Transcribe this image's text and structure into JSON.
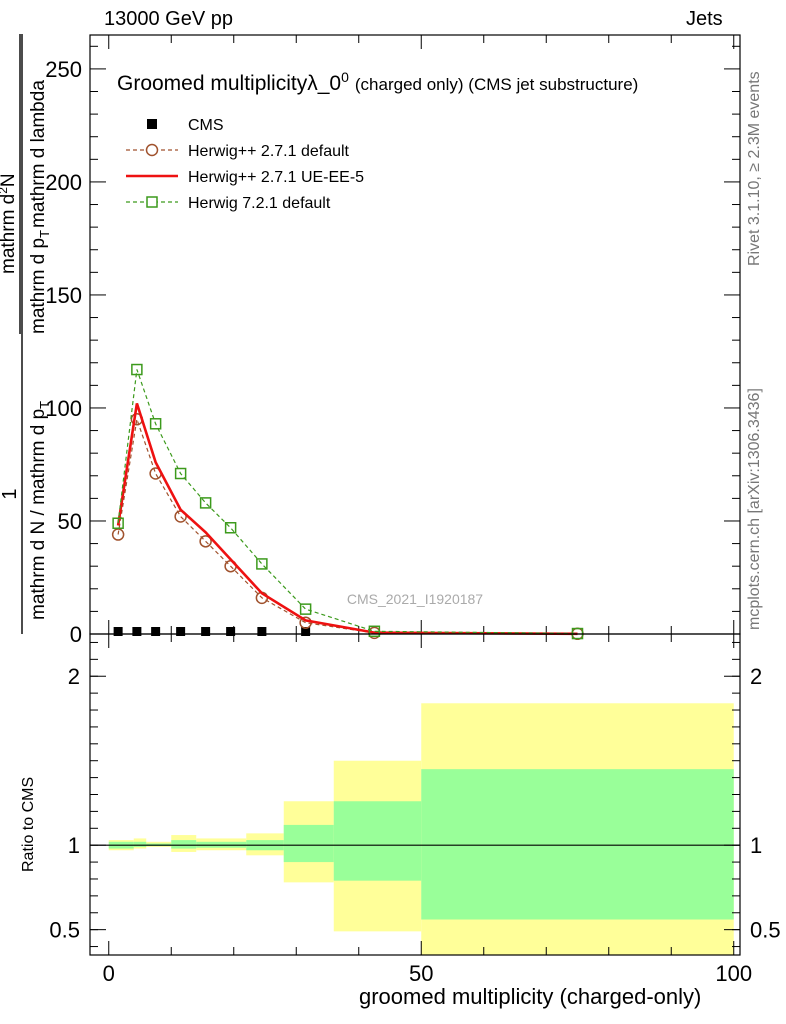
{
  "header": {
    "left": "13000 GeV pp",
    "right": "Jets"
  },
  "side_labels": {
    "rivet": "Rivet 3.1.10, ≥ 2.3M events",
    "mcplots": "mcplots.cern.ch [arXiv:1306.3436]"
  },
  "watermark": "CMS_2021_I1920187",
  "colors": {
    "cms": "#000000",
    "herwigpp_default": "#a0522d",
    "herwigpp_ueee5": "#ee1111",
    "herwig7": "#3c9a1c",
    "band_outer": "#ffff99",
    "band_inner": "#99ff99"
  },
  "chart_data": [
    {
      "type": "line",
      "title": "Groomed multiplicityλ_0",
      "title_superscript": "0",
      "title_suffix": "(charged only) (CMS jet substructure)",
      "ylabel_parts": {
        "numerator": "1",
        "denominator": "mathrm d N / mathrm d p",
        "denominator_sub": "T",
        "right_numerator": "mathrm d",
        "right_numerator_sup": "2",
        "right_numerator_tail": "N",
        "right_denominator": "mathrm d p",
        "right_denominator_sub": "T",
        "right_denominator_tail": "mathrm d lambda"
      },
      "xlim": [
        -3,
        101
      ],
      "ylim": [
        0,
        265
      ],
      "yticks": [
        0,
        50,
        100,
        150,
        200,
        250
      ],
      "legend_position": "top-left",
      "series": [
        {
          "name": "CMS",
          "style": "square-markers",
          "x": [
            1.5,
            4.5,
            7.5,
            11.5,
            15.5,
            19.5,
            24.5,
            31.5
          ],
          "y": [
            0.4,
            0.4,
            0.4,
            0.4,
            0.4,
            0.4,
            0.4,
            0.4
          ]
        },
        {
          "name": "Herwig++ 2.7.1 default",
          "style": "dashed-circles",
          "x": [
            1.5,
            4.5,
            7.5,
            11.5,
            15.5,
            19.5,
            24.5,
            31.5,
            42.5,
            75
          ],
          "y": [
            44,
            95,
            71,
            52,
            41,
            30,
            16,
            5,
            0.5,
            0.1
          ]
        },
        {
          "name": "Herwig++ 2.7.1 UE-EE-5",
          "style": "solid",
          "x": [
            1.5,
            4.5,
            7.5,
            11.5,
            15.5,
            19.5,
            24.5,
            31.5,
            42.5,
            75
          ],
          "y": [
            48,
            102,
            76,
            55,
            45,
            33,
            18,
            6,
            0.6,
            0.1
          ]
        },
        {
          "name": "Herwig 7.2.1 default",
          "style": "dashed-squares",
          "x": [
            1.5,
            4.5,
            7.5,
            11.5,
            15.5,
            19.5,
            24.5,
            31.5,
            42.5,
            75
          ],
          "y": [
            49,
            117,
            93,
            71,
            58,
            47,
            31,
            11,
            1.2,
            0.2
          ]
        }
      ]
    },
    {
      "type": "area",
      "ylabel": "Ratio to CMS",
      "xlabel": "groomed multiplicity (charged-only)",
      "xlim": [
        -3,
        101
      ],
      "ylim": [
        0.35,
        2.25
      ],
      "yticks": [
        0.5,
        1,
        2
      ],
      "xticks": [
        0,
        50,
        100
      ],
      "reference_line": 1,
      "bins": [
        {
          "x0": 0,
          "x1": 4,
          "inner_lo": 0.98,
          "inner_hi": 1.02,
          "outer_lo": 0.97,
          "outer_hi": 1.03
        },
        {
          "x0": 4,
          "x1": 6,
          "inner_lo": 0.99,
          "inner_hi": 1.02,
          "outer_lo": 0.98,
          "outer_hi": 1.04
        },
        {
          "x0": 6,
          "x1": 10,
          "inner_lo": 0.995,
          "inner_hi": 1.01,
          "outer_lo": 0.99,
          "outer_hi": 1.02
        },
        {
          "x0": 10,
          "x1": 14,
          "inner_lo": 0.98,
          "inner_hi": 1.03,
          "outer_lo": 0.96,
          "outer_hi": 1.06
        },
        {
          "x0": 14,
          "x1": 22,
          "inner_lo": 0.985,
          "inner_hi": 1.02,
          "outer_lo": 0.97,
          "outer_hi": 1.04
        },
        {
          "x0": 22,
          "x1": 28,
          "inner_lo": 0.97,
          "inner_hi": 1.03,
          "outer_lo": 0.94,
          "outer_hi": 1.07
        },
        {
          "x0": 28,
          "x1": 36,
          "inner_lo": 0.9,
          "inner_hi": 1.12,
          "outer_lo": 0.78,
          "outer_hi": 1.26
        },
        {
          "x0": 36,
          "x1": 50,
          "inner_lo": 0.79,
          "inner_hi": 1.26,
          "outer_lo": 0.49,
          "outer_hi": 1.5
        },
        {
          "x0": 50,
          "x1": 100,
          "inner_lo": 0.56,
          "inner_hi": 1.45,
          "outer_lo": 0.35,
          "outer_hi": 1.84
        }
      ]
    }
  ]
}
